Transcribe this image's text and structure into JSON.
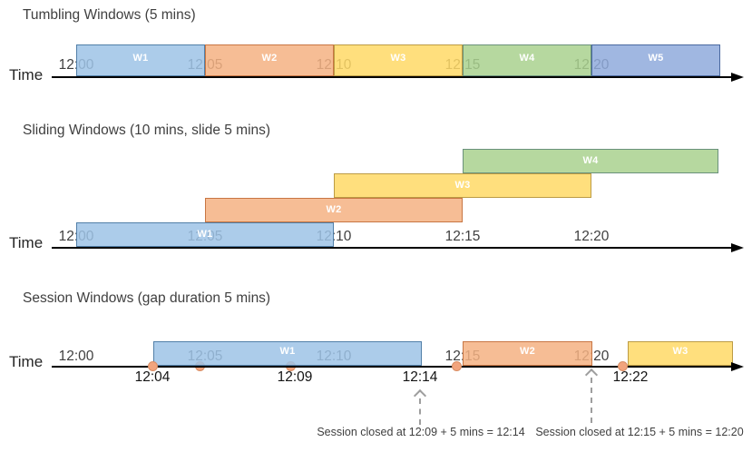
{
  "figure": {
    "time_axis_label": "Time",
    "tick_labels": [
      "12:00",
      "12:05",
      "12:10",
      "12:15",
      "12:20"
    ]
  },
  "colors": {
    "title_text": "#3F3F3F",
    "tick_text": "#404040",
    "axis_text": "#262626",
    "event_text": "#141414",
    "anno_text": "#3F3F3F",
    "axis_line": "#000000",
    "arrow_gray": "#9E9E9E"
  },
  "palette": {
    "blue": {
      "fill": "#9DC3E6",
      "border": "#41719C"
    },
    "orange": {
      "fill": "#F4B183",
      "border": "#C06A35"
    },
    "yellow": {
      "fill": "#FFD966",
      "border": "#B08F3A"
    },
    "green": {
      "fill": "#A9D18E",
      "border": "#5D8574"
    },
    "indigo": {
      "fill": "#8FAADC",
      "border": "#3B5C94"
    }
  },
  "event_marker": {
    "fill": "#F2A47D",
    "border": "#D98E64"
  },
  "diagrams": [
    {
      "name": "tumbling",
      "title": "Tumbling Windows (5 mins)",
      "windows": [
        {
          "label": "W1",
          "color": "blue",
          "start": "12:00",
          "end": "12:05"
        },
        {
          "label": "W2",
          "color": "orange",
          "start": "12:05",
          "end": "12:10"
        },
        {
          "label": "W3",
          "color": "yellow",
          "start": "12:10",
          "end": "12:15"
        },
        {
          "label": "W4",
          "color": "green",
          "start": "12:15",
          "end": "12:20"
        },
        {
          "label": "W5",
          "color": "indigo",
          "start": "12:20",
          "end": "12:25"
        }
      ]
    },
    {
      "name": "sliding",
      "title": "Sliding Windows (10 mins, slide 5 mins)",
      "windows": [
        {
          "label": "W1",
          "color": "blue",
          "start": "12:00",
          "end": "12:10"
        },
        {
          "label": "W2",
          "color": "orange",
          "start": "12:05",
          "end": "12:15"
        },
        {
          "label": "W3",
          "color": "yellow",
          "start": "12:10",
          "end": "12:20"
        },
        {
          "label": "W4",
          "color": "green",
          "start": "12:15",
          "end": "12:25"
        }
      ]
    },
    {
      "name": "session",
      "title": "Session Windows (gap duration 5 mins)",
      "windows": [
        {
          "label": "W1",
          "color": "blue",
          "start": "12:04",
          "end": "12:14"
        },
        {
          "label": "W2",
          "color": "orange",
          "start": "12:15",
          "end": "12:20"
        },
        {
          "label": "W3",
          "color": "yellow",
          "start": "12:22"
        }
      ],
      "events": [
        "12:04",
        "12:05",
        "12:09",
        "12:15",
        "12:22"
      ],
      "event_labels_below": [
        "12:04",
        "12:09",
        "12:14",
        "12:22"
      ],
      "annotations": [
        "Session closed at 12:09 + 5 mins = 12:14",
        "Session closed at 12:15 + 5 mins = 12:20"
      ]
    }
  ]
}
